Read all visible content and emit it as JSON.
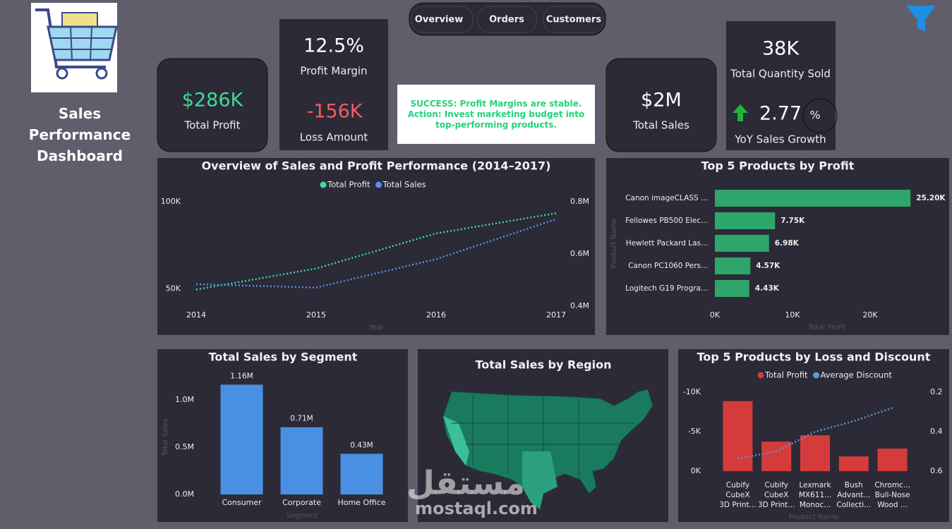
{
  "header": {
    "title": "Sales Performance Dashboard"
  },
  "nav": [
    "Overview",
    "Orders",
    "Customers"
  ],
  "kpis": {
    "total_profit": {
      "value": "$286K",
      "label": "Total Profit"
    },
    "profit_margin": {
      "value": "12.5%",
      "label": "Profit Margin"
    },
    "loss_amount": {
      "value": "-156K",
      "label": "Loss Amount"
    },
    "total_sales": {
      "value": "$2M",
      "label": "Total Sales"
    },
    "total_quantity": {
      "value": "38K",
      "label": "Total Quantity Sold"
    },
    "yoy_growth": {
      "value": "2.77",
      "unit": "%",
      "label": "YoY Sales Growth"
    }
  },
  "alert": "SUCCESS: Profit Margins are stable. Action: Invest marketing budget into top-performing products.",
  "watermark": {
    "arabic": "مستقل",
    "latin": "mostaql.com"
  },
  "chart_data": [
    {
      "type": "line",
      "title": "Overview of Sales and Profit Performance (2014–2017)",
      "categories": [
        "2014",
        "2015",
        "2016",
        "2017"
      ],
      "x_label": "Year",
      "series": [
        {
          "name": "Total Profit",
          "color": "#3ddc97",
          "values": [
            49500,
            61600,
            81800,
            93400
          ]
        },
        {
          "name": "Total Sales",
          "color": "#5b8def",
          "axis": "y2",
          "values": [
            484000,
            471000,
            580000,
            733000
          ]
        }
      ],
      "ylim": [
        40000,
        100000
      ],
      "yticks": [
        {
          "value": 50000,
          "label": "50K"
        },
        {
          "value": 100000,
          "label": "100K"
        }
      ],
      "y2lim": [
        400000,
        800000
      ],
      "y2ticks": [
        {
          "value": 400000,
          "label": "0.4M"
        },
        {
          "value": 600000,
          "label": "0.6M"
        },
        {
          "value": 800000,
          "label": "0.8M"
        }
      ],
      "legend": "top"
    },
    {
      "type": "hbar",
      "title": "Top 5 Products by Profit",
      "categories": [
        "Canon imageCLASS ...",
        "Fellowes PB500 Elec...",
        "Hewlett Packard Las...",
        "Canon PC1060 Pers...",
        "Logitech G19 Progra..."
      ],
      "values": [
        25200,
        7750,
        6980,
        4570,
        4430
      ],
      "value_labels": [
        "25.20K",
        "7.75K",
        "6.98K",
        "4.57K",
        "4.43K"
      ],
      "color": "#2ea56a",
      "xlim": [
        0,
        27000
      ],
      "xticks": [
        {
          "value": 0,
          "label": "0K"
        },
        {
          "value": 10000,
          "label": "10K"
        },
        {
          "value": 20000,
          "label": "20K"
        }
      ],
      "x_label": "Total Profit",
      "y_label": "Product Name"
    },
    {
      "type": "bar",
      "title": "Total Sales by Segment",
      "categories": [
        "Consumer",
        "Corporate",
        "Home Office"
      ],
      "values": [
        1160000,
        710000,
        430000
      ],
      "value_labels": [
        "1.16M",
        "0.71M",
        "0.43M"
      ],
      "color": "#4a90e2",
      "ylim": [
        0,
        1200000
      ],
      "yticks": [
        {
          "value": 0,
          "label": "0.0M"
        },
        {
          "value": 500000,
          "label": "0.5M"
        },
        {
          "value": 1000000,
          "label": "1.0M"
        }
      ],
      "x_label": "Segment",
      "y_label": "Total Sales"
    },
    {
      "type": "map",
      "title": "Total Sales by Region"
    },
    {
      "type": "combo",
      "title": "Top 5 Products by Loss and Discount",
      "categories": [
        "Cubify\nCubeX\n3D Print...",
        "Cubify\nCubeX\n3D Print...",
        "Lexmark\nMX611...\nMonoc...",
        "Bush\nAdvant...\nCollecti...",
        "Chromc...\nBull-Nose\nWood ..."
      ],
      "series": [
        {
          "name": "Total Profit",
          "color": "#d63b3b",
          "values": [
            -8880,
            -3750,
            -4550,
            -1875,
            -2860
          ]
        },
        {
          "name": "Average Discount",
          "color": "#5b9bd5",
          "axis": "y2",
          "values": [
            0.536,
            0.5,
            0.4,
            0.346,
            0.279
          ]
        }
      ],
      "ylim": [
        0,
        -11000
      ],
      "yticks": [
        {
          "value": -10000,
          "label": "-10K"
        },
        {
          "value": -5000,
          "label": "-5K"
        },
        {
          "value": 0,
          "label": "0K"
        }
      ],
      "y2lim": [
        0.6,
        0.16
      ],
      "y2ticks": [
        0.2,
        0.4,
        0.6
      ],
      "x_label": "Product Name",
      "legend": "top"
    }
  ]
}
